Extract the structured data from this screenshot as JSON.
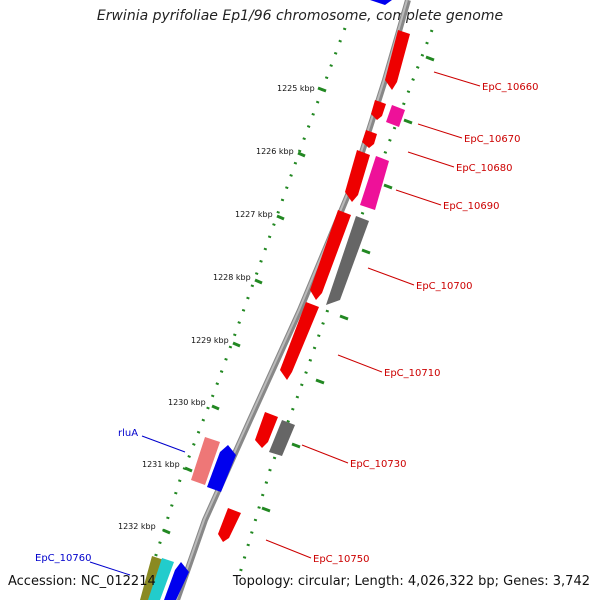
{
  "title": "Erwinia pyrifoliae Ep1/96 chromosome, complete genome",
  "footer": {
    "accession": "Accession: NC_012214",
    "summary": "Topology: circular; Length: 4,026,322 bp; Genes: 3,742"
  },
  "ticks": [
    "1225 kbp",
    "1226 kbp",
    "1227 kbp",
    "1228 kbp",
    "1229 kbp",
    "1230 kbp",
    "1231 kbp",
    "1232 kbp"
  ],
  "genes": [
    {
      "name": "EpC_10660",
      "color": "#cc0000"
    },
    {
      "name": "EpC_10670",
      "color": "#cc0000"
    },
    {
      "name": "EpC_10680",
      "color": "#cc0000"
    },
    {
      "name": "EpC_10690",
      "color": "#cc0000"
    },
    {
      "name": "EpC_10700",
      "color": "#cc0000"
    },
    {
      "name": "EpC_10710",
      "color": "#cc0000"
    },
    {
      "name": "EpC_10730",
      "color": "#cc0000"
    },
    {
      "name": "EpC_10750",
      "color": "#cc0000"
    },
    {
      "name": "rluA",
      "color": "#0000cc"
    },
    {
      "name": "EpC_10760",
      "color": "#0000cc"
    }
  ],
  "colors": {
    "backbone": "#888888",
    "gc_dots": "#228822",
    "red_gene": "#ee0000",
    "pink_gene": "#ee1199",
    "gray_gene": "#666666",
    "blue_gene": "#0000ee",
    "salmon_gene": "#ee7777"
  }
}
